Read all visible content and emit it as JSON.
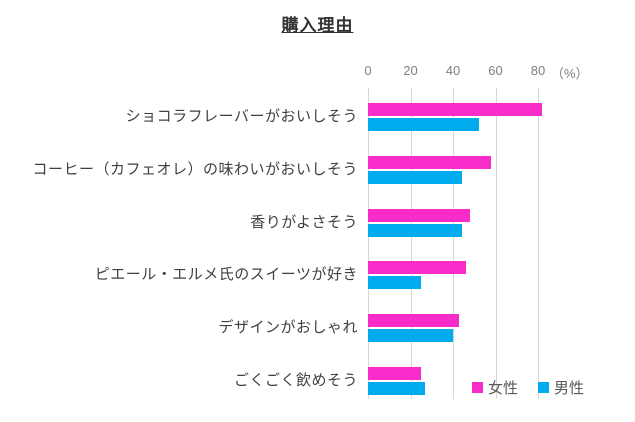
{
  "chart_data": {
    "type": "bar",
    "orientation": "horizontal",
    "title": "購入理由",
    "categories": [
      "ショコラフレーバーがおいしそう",
      "コーヒー（カフェオレ）の味わいがおいしそう",
      "香りがよさそう",
      "ピエール・エルメ氏のスイーツが好き",
      "デザインがおしゃれ",
      "ごくごく飲めそう"
    ],
    "series": [
      {
        "name": "女性",
        "color": "#f82cc8",
        "values": [
          82,
          58,
          48,
          46,
          43,
          25
        ]
      },
      {
        "name": "男性",
        "color": "#00acee",
        "values": [
          52,
          44,
          44,
          25,
          40,
          27
        ]
      }
    ],
    "axis": {
      "ticks": [
        0,
        20,
        40,
        60,
        80
      ],
      "unit_label": "（%）",
      "xlim": [
        0,
        120
      ],
      "grid": true
    },
    "legend_position": "bottom-right"
  },
  "colors": {
    "female_bar": "#f82cc8",
    "male_bar": "#00acee",
    "gridline": "#d6d6d6",
    "axis_text": "#808080",
    "category_text": "#404040",
    "title_text": "#333333",
    "legend_text": "#595959",
    "background": "#ffffff"
  }
}
